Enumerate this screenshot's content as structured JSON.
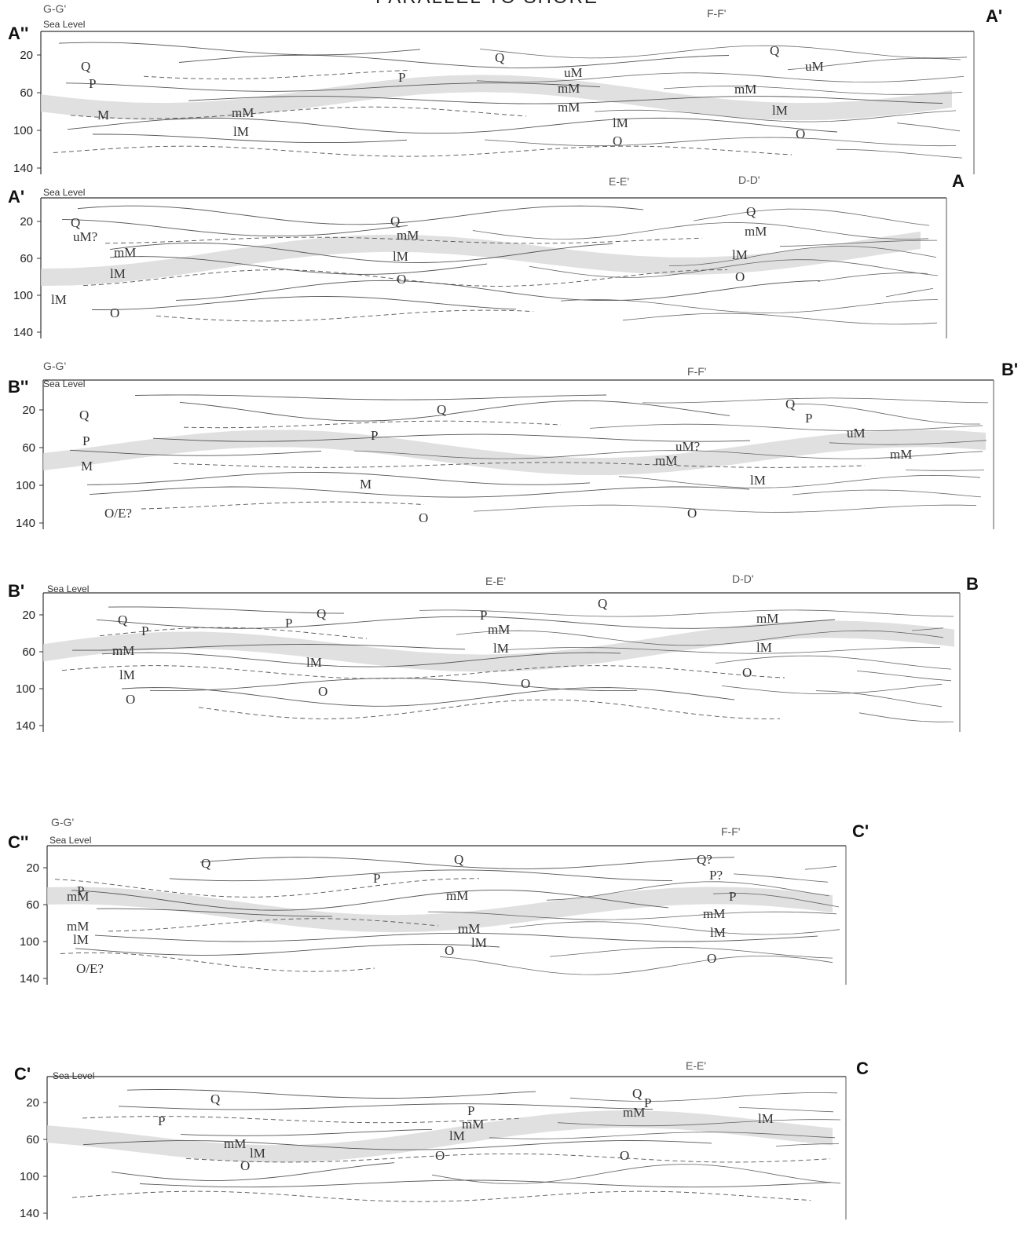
{
  "title": "PARALLEL TO SHORE",
  "panels": [
    {
      "left_label": "A''",
      "right_label": "A'",
      "sea_level": "Sea Level",
      "sections": [
        "G-G'",
        "F-F'"
      ],
      "depth_ticks": [
        20,
        60,
        100,
        140
      ],
      "units": [
        "Q",
        "P",
        "M",
        "mM",
        "lM",
        "P",
        "Q",
        "uM",
        "mM",
        "mM",
        "lM",
        "O",
        "Q",
        "uM",
        "mM",
        "lM",
        "O"
      ]
    },
    {
      "left_label": "A'",
      "right_label": "A",
      "sea_level": "Sea Level",
      "sections": [
        "E-E'",
        "D-D'"
      ],
      "depth_ticks": [
        20,
        60,
        100,
        140
      ],
      "units": [
        "Q",
        "uM?",
        "mM",
        "lM",
        "lM",
        "O",
        "Q",
        "mM",
        "lM",
        "O",
        "Q",
        "mM",
        "lM",
        "O"
      ]
    },
    {
      "left_label": "B''",
      "right_label": "B'",
      "sea_level": "Sea Level",
      "sections": [
        "G-G'",
        "F-F'"
      ],
      "depth_ticks": [
        20,
        60,
        100,
        140
      ],
      "units": [
        "Q",
        "P",
        "M",
        "O/E?",
        "P",
        "Q",
        "M",
        "O",
        "uM?",
        "mM",
        "Q",
        "P",
        "uM",
        "mM",
        "lM",
        "O"
      ]
    },
    {
      "left_label": "B'",
      "right_label": "B",
      "sea_level": "Sea Level",
      "sections": [
        "E-E'",
        "D-D'"
      ],
      "depth_ticks": [
        20,
        60,
        100,
        140
      ],
      "units": [
        "Q",
        "P",
        "mM",
        "lM",
        "O",
        "P",
        "Q",
        "lM",
        "O",
        "P",
        "mM",
        "lM",
        "O",
        "Q",
        "mM",
        "lM",
        "O"
      ]
    },
    {
      "left_label": "C''",
      "right_label": "C'",
      "sea_level": "Sea Level",
      "sections": [
        "G-G'",
        "F-F'"
      ],
      "depth_ticks": [
        20,
        60,
        100,
        140
      ],
      "units": [
        "P",
        "Q",
        "mM",
        "mM",
        "lM",
        "O/E?",
        "P",
        "Q",
        "mM",
        "mM",
        "lM",
        "O",
        "Q?",
        "P?",
        "P",
        "mM",
        "lM",
        "O"
      ]
    },
    {
      "left_label": "C'",
      "right_label": "C",
      "sea_level": "Sea Level",
      "sections": [
        "E-E'"
      ],
      "depth_ticks": [
        20,
        60,
        100,
        140
      ],
      "units": [
        "Q",
        "P",
        "mM",
        "lM",
        "O",
        "P",
        "mM",
        "lM",
        "O",
        "O",
        "Q",
        "P",
        "mM",
        "lM"
      ]
    }
  ]
}
